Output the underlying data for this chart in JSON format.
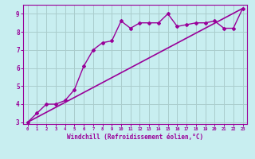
{
  "title": "",
  "xlabel": "Windchill (Refroidissement éolien,°C)",
  "ylabel": "",
  "background_color": "#c8eef0",
  "line_color": "#990099",
  "grid_color": "#aacccc",
  "data_x": [
    0,
    1,
    2,
    3,
    4,
    5,
    6,
    7,
    8,
    9,
    10,
    11,
    12,
    13,
    14,
    15,
    16,
    17,
    18,
    19,
    20,
    21,
    22,
    23
  ],
  "data_y": [
    3.0,
    3.5,
    4.0,
    4.0,
    4.2,
    4.8,
    6.1,
    7.0,
    7.4,
    7.5,
    8.6,
    8.2,
    8.5,
    8.5,
    8.5,
    9.0,
    8.3,
    8.4,
    8.5,
    8.5,
    8.6,
    8.2,
    8.2,
    9.3
  ],
  "trend_x": [
    0,
    23
  ],
  "trend_y": [
    3.0,
    9.3
  ],
  "ylim": [
    2.9,
    9.5
  ],
  "xlim": [
    -0.5,
    23.5
  ],
  "yticks": [
    3,
    4,
    5,
    6,
    7,
    8,
    9
  ],
  "xticks": [
    0,
    1,
    2,
    3,
    4,
    5,
    6,
    7,
    8,
    9,
    10,
    11,
    12,
    13,
    14,
    15,
    16,
    17,
    18,
    19,
    20,
    21,
    22,
    23
  ]
}
